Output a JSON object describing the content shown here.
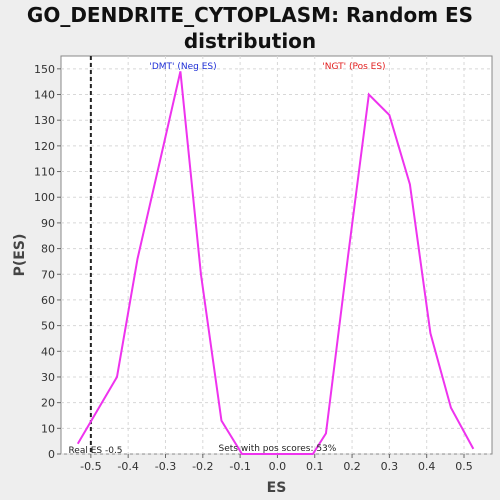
{
  "chart_data": {
    "type": "line",
    "title_line1": "GO_DENDRITE_CYTOPLASM: Random ES",
    "title_line2": "distribution",
    "xlabel": "ES",
    "ylabel": "P(ES)",
    "xlim": [
      -0.58,
      0.575
    ],
    "ylim": [
      0,
      155
    ],
    "xticks": [
      -0.5,
      -0.4,
      -0.3,
      -0.2,
      -0.1,
      0.0,
      0.1,
      0.2,
      0.3,
      0.4,
      0.5
    ],
    "xtick_labels": [
      "-0.5",
      "-0.4",
      "-0.3",
      "-0.2",
      "-0.1",
      "0.0",
      "0.1",
      "0.2",
      "0.3",
      "0.4",
      "0.5"
    ],
    "yticks": [
      0,
      10,
      20,
      30,
      40,
      50,
      60,
      70,
      80,
      90,
      100,
      110,
      120,
      130,
      140,
      150
    ],
    "ytick_labels": [
      "0",
      "10",
      "20",
      "30",
      "40",
      "50",
      "60",
      "70",
      "80",
      "90",
      "100",
      "110",
      "120",
      "130",
      "140",
      "150"
    ],
    "grid": true,
    "series": [
      {
        "color": "#ee33ee",
        "x": [
          -0.535,
          -0.43,
          -0.375,
          -0.315,
          -0.26,
          -0.205,
          -0.15,
          -0.095,
          0.095,
          0.13,
          0.19,
          0.245,
          0.3,
          0.355,
          0.41,
          0.465,
          0.525
        ],
        "y": [
          4,
          30,
          76,
          114,
          149,
          70,
          13,
          0,
          0,
          8,
          78,
          140,
          132,
          105,
          47,
          18,
          2
        ]
      }
    ],
    "real_es": {
      "value": -0.5,
      "label": "Real ES -0.5"
    },
    "annotations": {
      "neg": "'DMT' (Neg ES)",
      "pos": "'NGT' (Pos ES)",
      "sets_pos": "Sets with pos scores: 53%"
    }
  }
}
